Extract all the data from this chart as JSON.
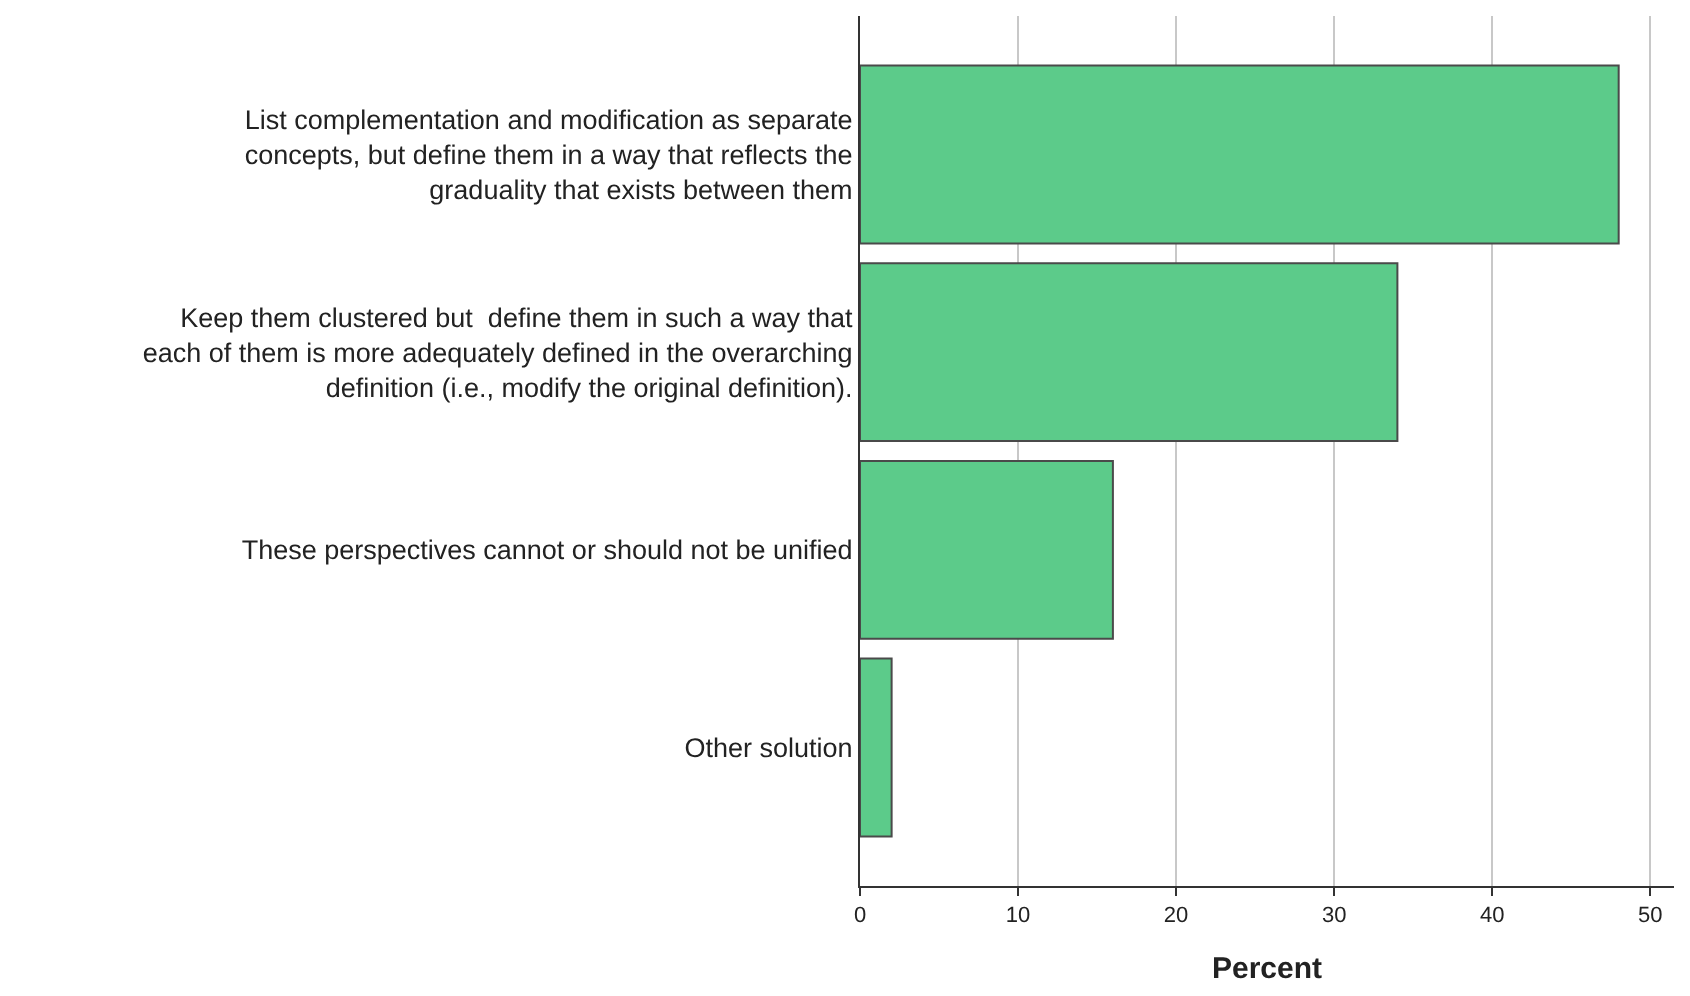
{
  "chart_data": {
    "type": "bar",
    "orientation": "horizontal",
    "xlabel": "Percent",
    "categories": [
      "List complementation and modification as separate\nconcepts, but define them in a way that reflects the\ngraduality that exists between them",
      "Keep them clustered but  define them in such a way that\neach of them is more adequately defined in the overarching\ndefinition (i.e., modify the original definition).",
      "These perspectives cannot or should not be unified",
      "Other solution"
    ],
    "values": [
      48,
      34,
      16,
      2
    ],
    "color": "#5ccb8a",
    "xlim": [
      0,
      51.5
    ],
    "xticks": [
      0,
      10,
      20,
      30,
      40,
      50
    ],
    "grid": "x"
  }
}
